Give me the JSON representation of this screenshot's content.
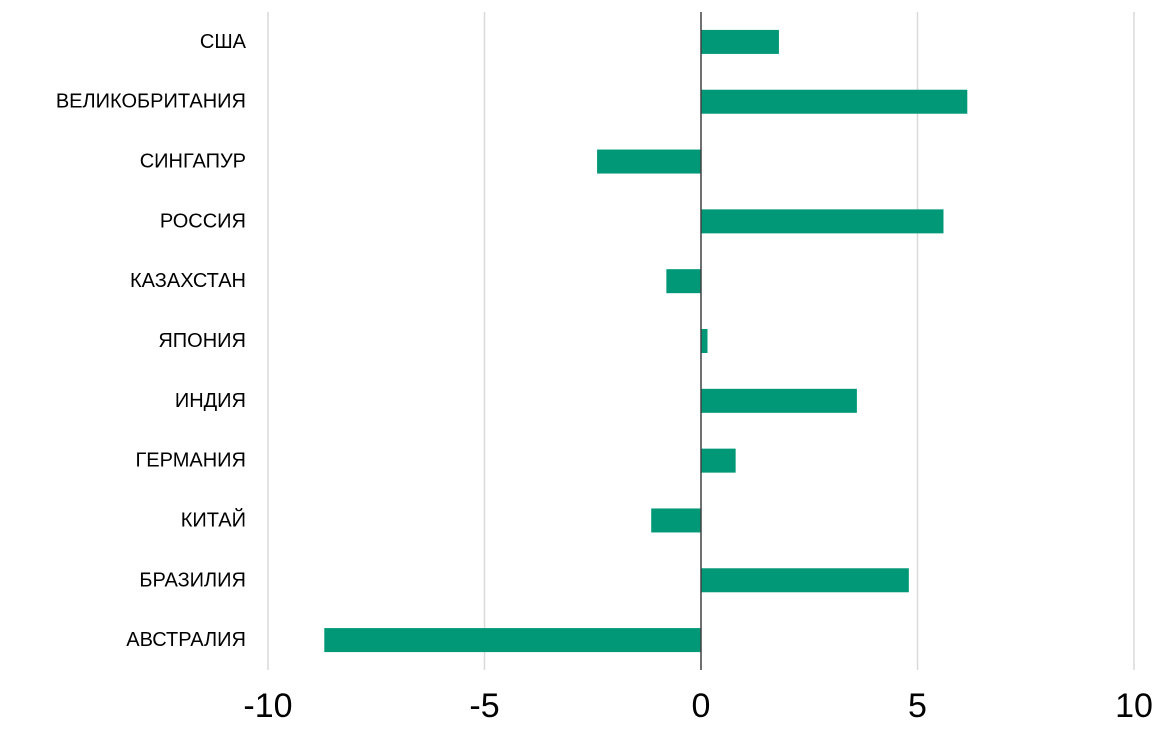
{
  "chart_data": {
    "type": "bar",
    "orientation": "horizontal",
    "categories": [
      "США",
      "ВЕЛИКОБРИТАНИЯ",
      "СИНГАПУР",
      "РОССИЯ",
      "КАЗАХСТАН",
      "ЯПОНИЯ",
      "ИНДИЯ",
      "ГЕРМАНИЯ",
      "КИТАЙ",
      "БРАЗИЛИЯ",
      "АВСТРАЛИЯ"
    ],
    "values": [
      1.8,
      6.15,
      -2.4,
      5.6,
      -0.8,
      0.15,
      3.6,
      0.8,
      -1.15,
      4.8,
      -8.7
    ],
    "xlim": [
      -10,
      10
    ],
    "xticks": [
      "-10",
      "-5",
      "0",
      "5",
      "10"
    ],
    "xtick_values": [
      -10,
      -5,
      0,
      5,
      10
    ],
    "title": "",
    "xlabel": "",
    "ylabel": "",
    "grid": "vertical",
    "legend": "none",
    "bar_color": "#009876",
    "grid_color": "#d9d9d9",
    "zero_line_color": "#404040"
  }
}
